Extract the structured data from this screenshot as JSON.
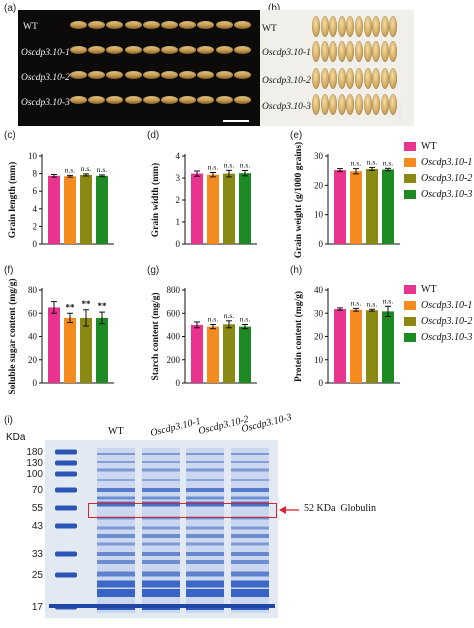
{
  "panels": {
    "a": "(a)",
    "b": "(b)",
    "c": "(c)",
    "d": "(d)",
    "e": "(e)",
    "f": "(f)",
    "g": "(g)",
    "h": "(h)",
    "i": "(i)"
  },
  "genotypes": [
    "WT",
    "Oscdp3.10-1",
    "Oscdp3.10-2",
    "Oscdp3.10-3"
  ],
  "colors": {
    "WT": "#e8338f",
    "L1": "#f58a1f",
    "L2": "#8a8a12",
    "L3": "#1e8a24"
  },
  "chart_data": [
    {
      "id": "c",
      "type": "bar",
      "categories": [
        "WT",
        "Oscdp3.10-1",
        "Oscdp3.10-2",
        "Oscdp3.10-3"
      ],
      "values": [
        7.75,
        7.7,
        7.85,
        7.75
      ],
      "errors": [
        0.15,
        0.1,
        0.12,
        0.1
      ],
      "ylabel": "Grain length (mm)",
      "ylim": [
        0,
        10
      ],
      "yticks": [
        "0",
        "2",
        "4",
        "6",
        "8",
        "10"
      ],
      "annotations": [
        "",
        "n.s.",
        "n.s.",
        "n.s."
      ]
    },
    {
      "id": "d",
      "type": "bar",
      "categories": [
        "WT",
        "Oscdp3.10-1",
        "Oscdp3.10-2",
        "Oscdp3.10-3"
      ],
      "values": [
        3.2,
        3.15,
        3.2,
        3.22
      ],
      "errors": [
        0.12,
        0.1,
        0.15,
        0.12
      ],
      "ylabel": "Grain width (mm)",
      "ylim": [
        0,
        4
      ],
      "yticks": [
        "0",
        "1",
        "2",
        "3",
        "4"
      ],
      "annotations": [
        "",
        "n.s.",
        "n.s.",
        "n.s."
      ]
    },
    {
      "id": "e",
      "type": "bar",
      "categories": [
        "WT",
        "Oscdp3.10-1",
        "Oscdp3.10-2",
        "Oscdp3.10-3"
      ],
      "values": [
        25.2,
        24.8,
        25.6,
        25.4
      ],
      "errors": [
        0.5,
        0.9,
        0.5,
        0.4
      ],
      "ylabel": "Grain weight (g/1000 grains)",
      "ylim": [
        0,
        30
      ],
      "yticks": [
        "0",
        "10",
        "20",
        "30"
      ],
      "annotations": [
        "",
        "n.s.",
        "n.s.",
        "n.s."
      ]
    },
    {
      "id": "f",
      "type": "bar",
      "categories": [
        "WT",
        "Oscdp3.10-1",
        "Oscdp3.10-2",
        "Oscdp3.10-3"
      ],
      "values": [
        65,
        56,
        56,
        56
      ],
      "errors": [
        5,
        4,
        7,
        5
      ],
      "ylabel": "Soluble sugar content (mg/g)",
      "ylim": [
        0,
        80
      ],
      "yticks": [
        "0",
        "20",
        "40",
        "60",
        "80"
      ],
      "annotations": [
        "",
        "**",
        "**",
        "**"
      ]
    },
    {
      "id": "g",
      "type": "bar",
      "categories": [
        "WT",
        "Oscdp3.10-1",
        "Oscdp3.10-2",
        "Oscdp3.10-3"
      ],
      "values": [
        500,
        485,
        505,
        485
      ],
      "errors": [
        25,
        18,
        30,
        18
      ],
      "ylabel": "Starch content (mg/g)",
      "ylim": [
        0,
        800
      ],
      "yticks": [
        "0",
        "200",
        "400",
        "600",
        "800"
      ],
      "annotations": [
        "",
        "n.s.",
        "n.s.",
        "n.s."
      ]
    },
    {
      "id": "h",
      "type": "bar",
      "categories": [
        "WT",
        "Oscdp3.10-1",
        "Oscdp3.10-2",
        "Oscdp3.10-3"
      ],
      "values": [
        31.8,
        31.5,
        31.3,
        30.8
      ],
      "errors": [
        0.5,
        0.6,
        0.4,
        2.2
      ],
      "ylabel": "Protein content (mg/g)",
      "ylim": [
        0,
        40
      ],
      "yticks": [
        "0",
        "10",
        "20",
        "30",
        "40"
      ],
      "annotations": [
        "",
        "n.s.",
        "n.s.",
        "n.s."
      ]
    }
  ],
  "legend": [
    "WT",
    "Oscdp3.10-1",
    "Oscdp3.10-2",
    "Oscdp3.10-3"
  ],
  "gel": {
    "unit_label": "KDa",
    "markers": [
      "180",
      "130",
      "100",
      "70",
      "55",
      "43",
      "33",
      "25",
      "17"
    ],
    "lanes": [
      "WT",
      "Oscdp3.10-1",
      "Oscdp3.10-2",
      "Oscdp3.10-3"
    ],
    "callout": "52 KDa  Globulin"
  }
}
